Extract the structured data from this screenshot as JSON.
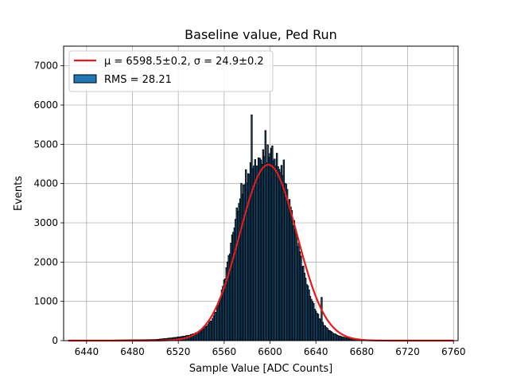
{
  "chart_data": {
    "type": "bar",
    "title": "Baseline value, Ped Run",
    "xlabel": "Sample Value [ADC Counts]",
    "ylabel": "Events",
    "xlim": [
      6420,
      6764
    ],
    "ylim": [
      0,
      7500
    ],
    "xticks": [
      6440,
      6480,
      6520,
      6560,
      6600,
      6640,
      6680,
      6720,
      6760
    ],
    "yticks": [
      0,
      1000,
      2000,
      3000,
      4000,
      5000,
      6000,
      7000
    ],
    "grid": true,
    "legend_position": "top-left",
    "histogram": {
      "name": "RMS = 28.21",
      "bin_width": 1,
      "color": "#1f77b4",
      "edgecolor": "#000000",
      "centers": [
        6500,
        6505,
        6510,
        6515,
        6520,
        6525,
        6530,
        6535,
        6540,
        6545,
        6550,
        6555,
        6560,
        6565,
        6570,
        6575,
        6580,
        6585,
        6590,
        6595,
        6600,
        6605,
        6610,
        6615,
        6620,
        6625,
        6630,
        6635,
        6640,
        6645,
        6650,
        6655,
        6660,
        6665,
        6670,
        6675,
        6680,
        6685,
        6690,
        6695,
        6700
      ],
      "values": [
        25,
        40,
        55,
        70,
        90,
        110,
        140,
        190,
        260,
        380,
        560,
        900,
        1500,
        2300,
        3100,
        3800,
        4200,
        4400,
        4550,
        4700,
        4750,
        4600,
        4300,
        3800,
        3100,
        2400,
        1700,
        1150,
        750,
        480,
        300,
        190,
        120,
        80,
        55,
        35,
        25,
        15,
        10,
        6,
        4
      ],
      "spikes": [
        {
          "x": 6584,
          "value": 5750
        },
        {
          "x": 6596,
          "value": 5350
        },
        {
          "x": 6601,
          "value": 4900
        },
        {
          "x": 6588,
          "value": 4450
        },
        {
          "x": 6592,
          "value": 4600
        },
        {
          "x": 6612,
          "value": 4600
        },
        {
          "x": 6645,
          "value": 1100
        }
      ]
    },
    "fit": {
      "name": "μ = 6598.5±0.2, σ = 24.9±0.2",
      "type": "gaussian",
      "mu": 6598.5,
      "sigma": 24.9,
      "amplitude": 4480,
      "x_range": [
        6424,
        6760
      ],
      "color": "#e41a1c"
    },
    "legend": [
      {
        "label": "μ = 6598.5±0.2, σ = 24.9±0.2",
        "kind": "line",
        "color": "#e41a1c"
      },
      {
        "label": "RMS = 28.21",
        "kind": "patch",
        "color": "#1f77b4"
      }
    ]
  }
}
